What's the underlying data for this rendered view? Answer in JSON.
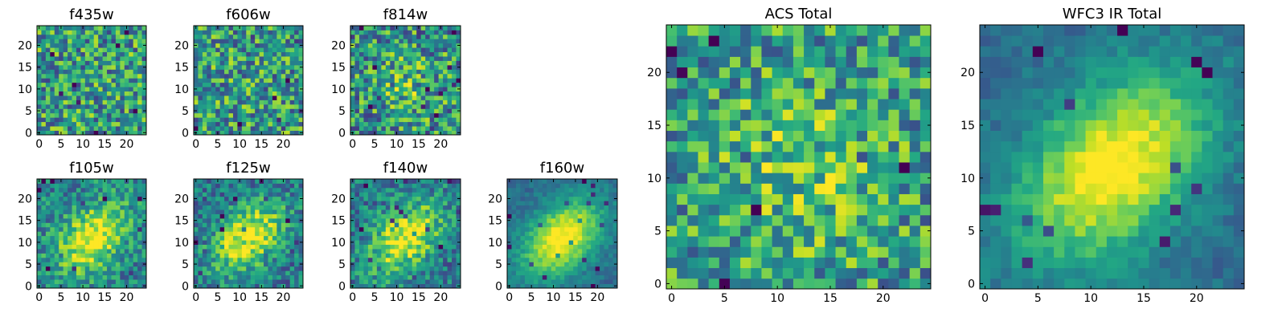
{
  "chart_data": [
    {
      "type": "heatmap",
      "title": "f435w",
      "pattern": "noise",
      "brightness": 0.55,
      "contrast": 0.35,
      "xlim": [
        0,
        24
      ],
      "ylim": [
        0,
        24
      ],
      "xticks": [
        0,
        5,
        10,
        15,
        20
      ],
      "yticks": [
        0,
        5,
        10,
        15,
        20
      ],
      "colormap": "viridis",
      "grid": false
    },
    {
      "type": "heatmap",
      "title": "f606w",
      "pattern": "noise",
      "brightness": 0.55,
      "contrast": 0.35,
      "xlim": [
        0,
        24
      ],
      "ylim": [
        0,
        24
      ],
      "xticks": [
        0,
        5,
        10,
        15,
        20
      ],
      "yticks": [
        0,
        5,
        10,
        15,
        20
      ],
      "colormap": "viridis",
      "grid": false
    },
    {
      "type": "heatmap",
      "title": "f814w",
      "pattern": "noise-with-center",
      "brightness": 0.5,
      "contrast": 0.4,
      "xlim": [
        0,
        24
      ],
      "ylim": [
        0,
        24
      ],
      "xticks": [
        0,
        5,
        10,
        15,
        20
      ],
      "yticks": [
        0,
        5,
        10,
        15,
        20
      ],
      "colormap": "viridis",
      "grid": false
    },
    {
      "type": "heatmap",
      "title": "f105w",
      "pattern": "blob",
      "brightness": 0.55,
      "contrast": 0.55,
      "xlim": [
        0,
        24
      ],
      "ylim": [
        0,
        24
      ],
      "xticks": [
        0,
        5,
        10,
        15,
        20
      ],
      "yticks": [
        0,
        5,
        10,
        15,
        20
      ],
      "colormap": "viridis",
      "grid": false
    },
    {
      "type": "heatmap",
      "title": "f125w",
      "pattern": "blob",
      "brightness": 0.5,
      "contrast": 0.6,
      "xlim": [
        0,
        24
      ],
      "ylim": [
        0,
        24
      ],
      "xticks": [
        0,
        5,
        10,
        15,
        20
      ],
      "yticks": [
        0,
        5,
        10,
        15,
        20
      ],
      "colormap": "viridis",
      "grid": false
    },
    {
      "type": "heatmap",
      "title": "f140w",
      "pattern": "blob",
      "brightness": 0.5,
      "contrast": 0.6,
      "xlim": [
        0,
        24
      ],
      "ylim": [
        0,
        24
      ],
      "xticks": [
        0,
        5,
        10,
        15,
        20
      ],
      "yticks": [
        0,
        5,
        10,
        15,
        20
      ],
      "colormap": "viridis",
      "grid": false
    },
    {
      "type": "heatmap",
      "title": "f160w",
      "pattern": "smooth-blob",
      "brightness": 0.45,
      "contrast": 0.7,
      "xlim": [
        0,
        24
      ],
      "ylim": [
        0,
        24
      ],
      "xticks": [
        0,
        5,
        10,
        15,
        20
      ],
      "yticks": [
        0,
        5,
        10,
        15,
        20
      ],
      "colormap": "viridis",
      "grid": false
    },
    {
      "type": "heatmap",
      "title": "ACS Total",
      "pattern": "noise-with-center",
      "brightness": 0.55,
      "contrast": 0.35,
      "xlim": [
        0,
        24
      ],
      "ylim": [
        0,
        24
      ],
      "xticks": [
        0,
        5,
        10,
        15,
        20
      ],
      "yticks": [
        0,
        5,
        10,
        15,
        20
      ],
      "colormap": "viridis",
      "grid": false
    },
    {
      "type": "heatmap",
      "title": "WFC3 IR Total",
      "pattern": "smooth-blob",
      "brightness": 0.45,
      "contrast": 0.7,
      "xlim": [
        0,
        24
      ],
      "ylim": [
        0,
        24
      ],
      "xticks": [
        0,
        5,
        10,
        15,
        20
      ],
      "yticks": [
        0,
        5,
        10,
        15,
        20
      ],
      "colormap": "viridis",
      "grid": false
    }
  ]
}
